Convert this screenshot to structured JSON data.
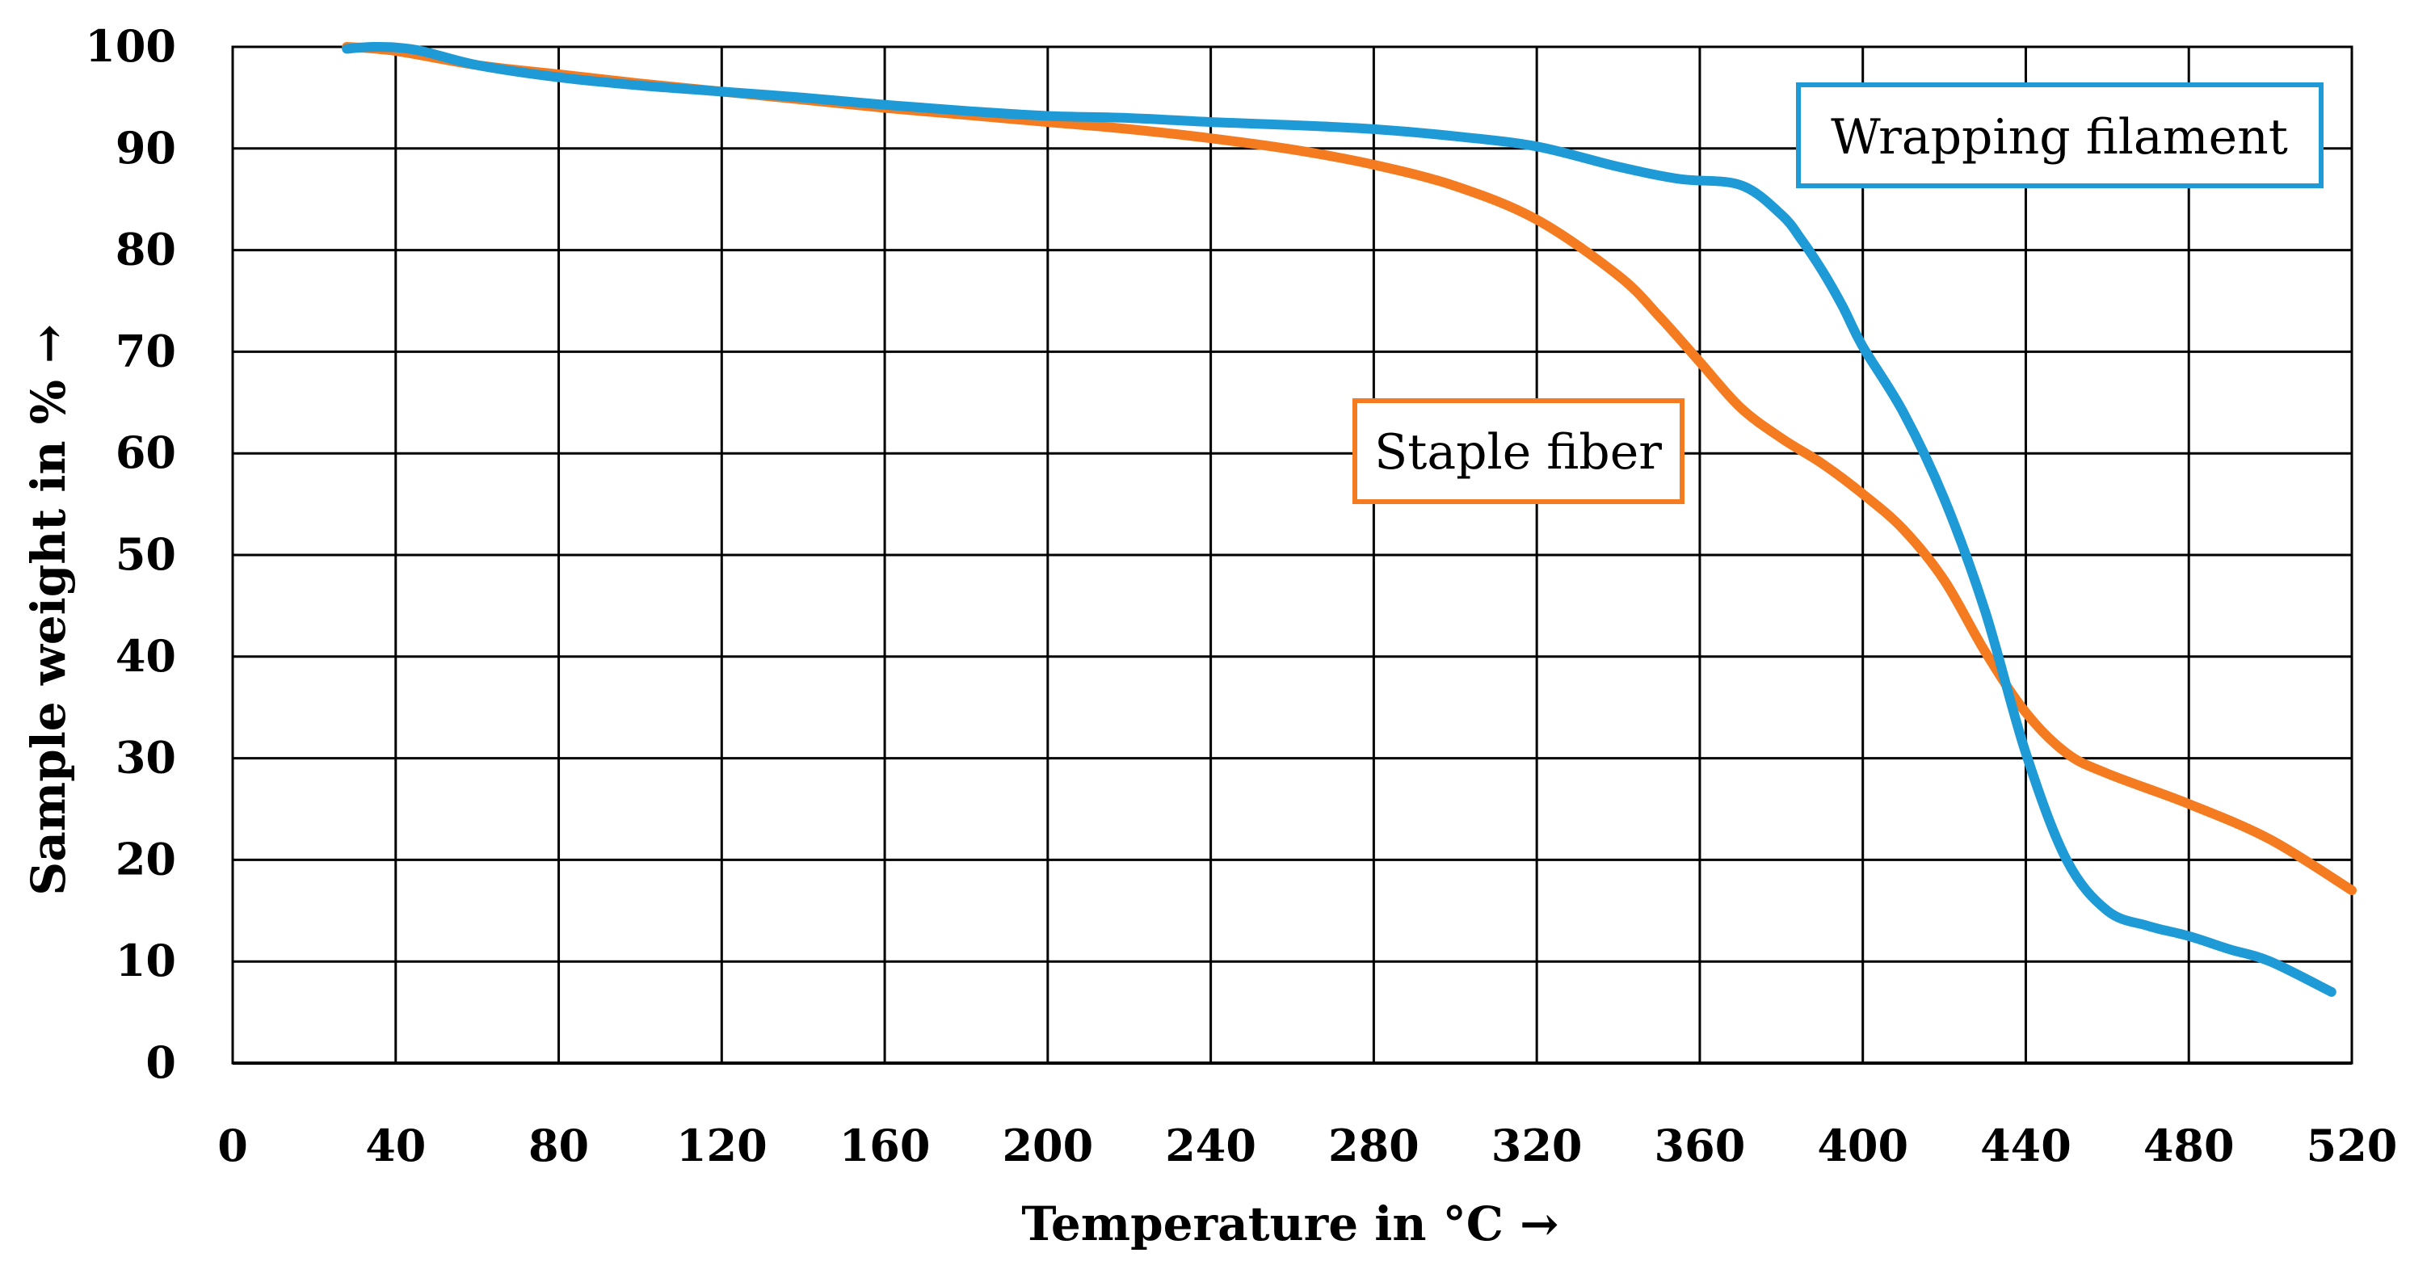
{
  "chart_data": {
    "type": "line",
    "title": "",
    "xlabel": "Temperature in °C →",
    "ylabel": "Sample weight in % →",
    "xlim": [
      0,
      520
    ],
    "ylim": [
      0,
      100
    ],
    "x_ticks": [
      0,
      40,
      80,
      120,
      160,
      200,
      240,
      280,
      320,
      360,
      400,
      440,
      480,
      520
    ],
    "y_ticks": [
      0,
      10,
      20,
      30,
      40,
      50,
      60,
      70,
      80,
      90,
      100
    ],
    "grid": true,
    "series": [
      {
        "name": "Staple fiber",
        "color": "#F47B20",
        "x": [
          28,
          40,
          60,
          80,
          100,
          120,
          140,
          160,
          180,
          200,
          220,
          240,
          260,
          280,
          300,
          320,
          340,
          350,
          360,
          370,
          380,
          390,
          400,
          410,
          420,
          430,
          440,
          450,
          460,
          480,
          500,
          520
        ],
        "y": [
          100,
          99.6,
          98.2,
          97.3,
          96.4,
          95.6,
          94.8,
          94.0,
          93.3,
          92.6,
          91.9,
          91.0,
          89.9,
          88.4,
          86.3,
          83.0,
          77.5,
          73.5,
          69.0,
          64.5,
          61.5,
          59.0,
          56.0,
          52.5,
          47.5,
          40.5,
          34.5,
          30.5,
          28.5,
          25.5,
          22.0,
          17.0
        ]
      },
      {
        "name": "Wrapping filament",
        "color": "#1E9AD6",
        "x": [
          28,
          35,
          45,
          60,
          80,
          100,
          120,
          140,
          160,
          180,
          200,
          220,
          240,
          260,
          280,
          300,
          320,
          340,
          355,
          370,
          380,
          385,
          390,
          395,
          400,
          410,
          420,
          430,
          440,
          450,
          460,
          470,
          480,
          490,
          500,
          515
        ],
        "y": [
          99.8,
          100,
          99.7,
          98.2,
          97.0,
          96.2,
          95.6,
          95.0,
          94.3,
          93.7,
          93.2,
          93.0,
          92.6,
          92.3,
          91.9,
          91.2,
          90.2,
          88.2,
          87.0,
          86.4,
          83.5,
          81.0,
          78.0,
          74.5,
          70.5,
          64.0,
          55.5,
          44.5,
          30.5,
          20.0,
          15.0,
          13.5,
          12.5,
          11.2,
          10.0,
          7.0
        ]
      }
    ],
    "annotations": [
      {
        "text": "Wrapping filament",
        "series": "Wrapping filament"
      },
      {
        "text": "Staple fiber",
        "series": "Staple fiber"
      }
    ]
  }
}
